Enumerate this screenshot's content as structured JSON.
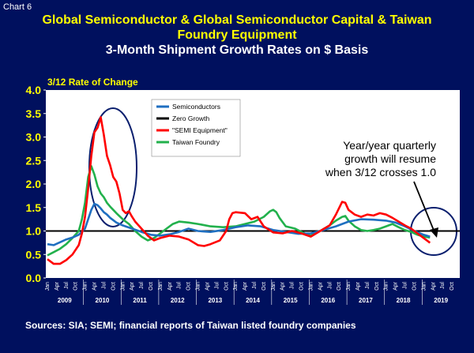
{
  "header": {
    "chart_id": "Chart 6",
    "title_line1": "Global Semiconductor & Global Semiconductor Capital & Taiwan",
    "title_line2": "Foundry Equipment",
    "subtitle": "3-Month Shipment Growth Rates on $ Basis"
  },
  "footer": {
    "source": "Sources: SIA; SEMI; financial reports of Taiwan listed foundry companies"
  },
  "colors": {
    "background": "#00105e",
    "plot": "#ffffff",
    "semiconductors": "#1f6fc0",
    "zero_growth": "#000000",
    "semi_equipment": "#ff0000",
    "taiwan_foundry": "#22b14c",
    "circle": "#0a1f6e"
  },
  "chart_data": {
    "type": "line",
    "ylabel": "3/12 Rate of Change",
    "ylim": [
      0.0,
      4.0
    ],
    "yticks": [
      "0.0",
      "0.5",
      "1.0",
      "1.5",
      "2.0",
      "2.5",
      "3.0",
      "3.5",
      "4.0"
    ],
    "month_ticks": [
      "Jan",
      "Apr",
      "Jul",
      "Oct"
    ],
    "years": [
      "2009",
      "2010",
      "2011",
      "2012",
      "2013",
      "2014",
      "2015",
      "2016",
      "2017",
      "2018",
      "2019"
    ],
    "x_note": "x = month index where 0 = Jan 2009",
    "legend": [
      {
        "key": "semiconductors",
        "label": "Semiconductors"
      },
      {
        "key": "zero_growth",
        "label": "Zero Growth"
      },
      {
        "key": "semi_equipment",
        "label": "\"SEMI Equipment\""
      },
      {
        "key": "taiwan_foundry",
        "label": "Taiwan Foundry"
      }
    ],
    "annotation": [
      "Year/year quarterly",
      "growth will resume",
      "when 3/12 crosses 1.0"
    ],
    "series": [
      {
        "name": "Semiconductors",
        "points": [
          [
            0,
            0.72
          ],
          [
            2,
            0.7
          ],
          [
            4,
            0.76
          ],
          [
            6,
            0.82
          ],
          [
            8,
            0.86
          ],
          [
            10,
            0.92
          ],
          [
            12,
            1.05
          ],
          [
            13,
            1.25
          ],
          [
            14,
            1.45
          ],
          [
            15,
            1.58
          ],
          [
            16,
            1.55
          ],
          [
            17,
            1.48
          ],
          [
            18,
            1.4
          ],
          [
            19,
            1.35
          ],
          [
            20,
            1.28
          ],
          [
            22,
            1.18
          ],
          [
            24,
            1.12
          ],
          [
            27,
            1.05
          ],
          [
            30,
            0.98
          ],
          [
            33,
            0.92
          ],
          [
            36,
            0.9
          ],
          [
            39,
            0.93
          ],
          [
            42,
            0.98
          ],
          [
            45,
            1.05
          ],
          [
            48,
            1.0
          ],
          [
            52,
            0.98
          ],
          [
            56,
            1.02
          ],
          [
            60,
            1.08
          ],
          [
            64,
            1.12
          ],
          [
            68,
            1.1
          ],
          [
            72,
            1.02
          ],
          [
            76,
            0.98
          ],
          [
            80,
            0.94
          ],
          [
            84,
            0.95
          ],
          [
            88,
            1.02
          ],
          [
            92,
            1.1
          ],
          [
            96,
            1.2
          ],
          [
            100,
            1.25
          ],
          [
            104,
            1.24
          ],
          [
            108,
            1.22
          ],
          [
            111,
            1.18
          ],
          [
            114,
            1.1
          ],
          [
            117,
            1.0
          ],
          [
            120,
            0.92
          ],
          [
            122,
            0.88
          ]
        ]
      },
      {
        "name": "SEMI Equipment",
        "points": [
          [
            0,
            0.4
          ],
          [
            2,
            0.3
          ],
          [
            4,
            0.3
          ],
          [
            6,
            0.38
          ],
          [
            8,
            0.5
          ],
          [
            10,
            0.7
          ],
          [
            11,
            0.95
          ],
          [
            12,
            1.3
          ],
          [
            13,
            1.9
          ],
          [
            14,
            2.6
          ],
          [
            15,
            3.1
          ],
          [
            16,
            3.2
          ],
          [
            17,
            3.42
          ],
          [
            18,
            3.05
          ],
          [
            19,
            2.6
          ],
          [
            20,
            2.4
          ],
          [
            21,
            2.15
          ],
          [
            22,
            2.05
          ],
          [
            23,
            1.8
          ],
          [
            24,
            1.45
          ],
          [
            25,
            1.38
          ],
          [
            26,
            1.42
          ],
          [
            27,
            1.3
          ],
          [
            28,
            1.2
          ],
          [
            30,
            1.05
          ],
          [
            32,
            0.9
          ],
          [
            34,
            0.8
          ],
          [
            36,
            0.85
          ],
          [
            39,
            0.9
          ],
          [
            42,
            0.88
          ],
          [
            45,
            0.82
          ],
          [
            48,
            0.7
          ],
          [
            50,
            0.68
          ],
          [
            52,
            0.72
          ],
          [
            55,
            0.8
          ],
          [
            57,
            1.0
          ],
          [
            58,
            1.25
          ],
          [
            59,
            1.38
          ],
          [
            60,
            1.4
          ],
          [
            63,
            1.38
          ],
          [
            65,
            1.25
          ],
          [
            67,
            1.3
          ],
          [
            69,
            1.1
          ],
          [
            72,
            0.97
          ],
          [
            75,
            0.95
          ],
          [
            78,
            1.0
          ],
          [
            81,
            0.95
          ],
          [
            84,
            0.88
          ],
          [
            87,
            1.0
          ],
          [
            90,
            1.12
          ],
          [
            92,
            1.35
          ],
          [
            94,
            1.62
          ],
          [
            95,
            1.6
          ],
          [
            96,
            1.45
          ],
          [
            98,
            1.35
          ],
          [
            100,
            1.3
          ],
          [
            102,
            1.35
          ],
          [
            104,
            1.33
          ],
          [
            106,
            1.38
          ],
          [
            108,
            1.35
          ],
          [
            110,
            1.28
          ],
          [
            112,
            1.2
          ],
          [
            114,
            1.12
          ],
          [
            116,
            1.05
          ],
          [
            118,
            0.95
          ],
          [
            120,
            0.85
          ],
          [
            122,
            0.75
          ]
        ]
      },
      {
        "name": "Taiwan Foundry",
        "points": [
          [
            0,
            0.48
          ],
          [
            2,
            0.55
          ],
          [
            4,
            0.62
          ],
          [
            6,
            0.72
          ],
          [
            8,
            0.85
          ],
          [
            10,
            1.0
          ],
          [
            11,
            1.25
          ],
          [
            12,
            1.6
          ],
          [
            13,
            2.15
          ],
          [
            14,
            2.38
          ],
          [
            15,
            2.2
          ],
          [
            16,
            1.95
          ],
          [
            17,
            1.8
          ],
          [
            18,
            1.72
          ],
          [
            19,
            1.6
          ],
          [
            20,
            1.52
          ],
          [
            21,
            1.45
          ],
          [
            22,
            1.38
          ],
          [
            24,
            1.25
          ],
          [
            26,
            1.15
          ],
          [
            28,
            1.0
          ],
          [
            30,
            0.88
          ],
          [
            32,
            0.8
          ],
          [
            34,
            0.85
          ],
          [
            36,
            0.95
          ],
          [
            38,
            1.05
          ],
          [
            40,
            1.15
          ],
          [
            42,
            1.2
          ],
          [
            45,
            1.18
          ],
          [
            48,
            1.15
          ],
          [
            52,
            1.1
          ],
          [
            56,
            1.08
          ],
          [
            60,
            1.1
          ],
          [
            63,
            1.15
          ],
          [
            66,
            1.2
          ],
          [
            69,
            1.3
          ],
          [
            71,
            1.42
          ],
          [
            72,
            1.45
          ],
          [
            73,
            1.4
          ],
          [
            74,
            1.28
          ],
          [
            76,
            1.1
          ],
          [
            79,
            1.05
          ],
          [
            81,
            0.98
          ],
          [
            84,
            0.9
          ],
          [
            87,
            1.0
          ],
          [
            90,
            1.12
          ],
          [
            92,
            1.22
          ],
          [
            94,
            1.3
          ],
          [
            95,
            1.32
          ],
          [
            96,
            1.22
          ],
          [
            98,
            1.1
          ],
          [
            100,
            1.02
          ],
          [
            102,
            1.0
          ],
          [
            104,
            1.02
          ],
          [
            106,
            1.05
          ],
          [
            108,
            1.1
          ],
          [
            110,
            1.15
          ],
          [
            112,
            1.08
          ],
          [
            114,
            1.02
          ],
          [
            116,
            0.98
          ],
          [
            118,
            0.92
          ],
          [
            120,
            0.88
          ],
          [
            122,
            0.86
          ]
        ]
      }
    ]
  }
}
